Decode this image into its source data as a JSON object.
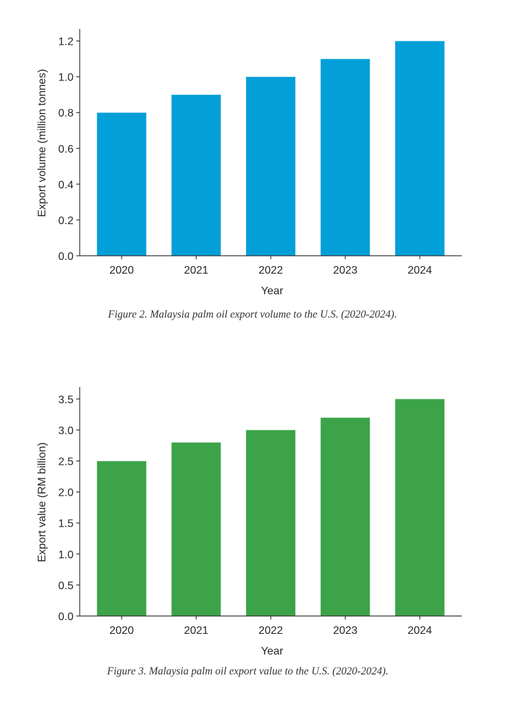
{
  "chart_data": [
    {
      "type": "bar",
      "title": "",
      "categories": [
        "2020",
        "2021",
        "2022",
        "2023",
        "2024"
      ],
      "values": [
        0.8,
        0.9,
        1.0,
        1.1,
        1.2
      ],
      "xlabel": "Year",
      "ylabel": "Export volume (million tonnes)",
      "ylim": [
        0,
        1.26
      ],
      "yticks": [
        0.0,
        0.2,
        0.4,
        0.6,
        0.8,
        1.0,
        1.2
      ],
      "ytick_labels": [
        "0.0",
        "0.2",
        "0.4",
        "0.6",
        "0.8",
        "1.0",
        "1.2"
      ],
      "grid": false,
      "bar_color": "#039fd8",
      "caption": "Figure 2. Malaysia palm oil export volume to the U.S. (2020-2024)."
    },
    {
      "type": "bar",
      "title": "",
      "categories": [
        "2020",
        "2021",
        "2022",
        "2023",
        "2024"
      ],
      "values": [
        2.5,
        2.8,
        3.0,
        3.2,
        3.5
      ],
      "xlabel": "Year",
      "ylabel": "Export value (RM billion)",
      "ylim": [
        0,
        3.67
      ],
      "yticks": [
        0.0,
        0.5,
        1.0,
        1.5,
        2.0,
        2.5,
        3.0,
        3.5
      ],
      "ytick_labels": [
        "0.0",
        "0.5",
        "1.0",
        "1.5",
        "2.0",
        "2.5",
        "3.0",
        "3.5"
      ],
      "grid": false,
      "bar_color": "#3ca348",
      "caption": "Figure 3. Malaysia palm oil export value to the U.S. (2020-2024)."
    }
  ]
}
